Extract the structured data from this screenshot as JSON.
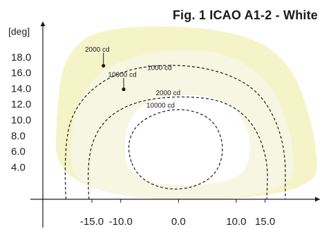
{
  "chart_data": {
    "type": "contour",
    "title": "Fig. 1 ICAO A1-2 - White",
    "xlabel": "",
    "ylabel": "[deg]",
    "xlim": [
      -23.5,
      24.5
    ],
    "ylim": [
      -0.8,
      22.3
    ],
    "x_ticks": [
      -15.0,
      -10.0,
      0.0,
      10.0,
      15.0
    ],
    "x_tick_labels": [
      "-15.0",
      "-10.0",
      "0.0",
      "10.0",
      "15.0"
    ],
    "y_ticks": [
      4.0,
      6.0,
      8.0,
      10.0,
      12.0,
      14.0,
      16.0,
      18.0
    ],
    "y_tick_labels": [
      "4.0",
      "6.0",
      "8.0",
      "10.0",
      "12.0",
      "14.0",
      "16.0",
      "18.0"
    ],
    "filled_regions": [
      {
        "label": "",
        "color": "#f4f4c8",
        "outline": [
          [
            -13,
            22
          ],
          [
            7,
            22
          ],
          [
            19,
            18.5
          ],
          [
            24,
            8
          ],
          [
            24,
            0
          ],
          [
            -21.5,
            0
          ],
          [
            -21,
            14
          ],
          [
            -19,
            19
          ]
        ]
      },
      {
        "label": "",
        "color": "#f6f6e2",
        "outline": [
          [
            -18,
            0
          ],
          [
            -19,
            9
          ],
          [
            -15,
            16
          ],
          [
            -5,
            19
          ],
          [
            8,
            19
          ],
          [
            16,
            15
          ],
          [
            20,
            8
          ],
          [
            20,
            0
          ]
        ]
      },
      {
        "label": "",
        "color": "#ffffff",
        "outline": [
          [
            -9,
            1.8
          ],
          [
            -9.5,
            9.5
          ],
          [
            -5,
            13
          ],
          [
            5,
            13.5
          ],
          [
            11,
            11
          ],
          [
            13,
            6
          ],
          [
            10,
            1.8
          ]
        ]
      }
    ],
    "contours": [
      {
        "label": "1000 cd",
        "points": [
          [
            -19.5,
            0
          ],
          [
            -20,
            7.5
          ],
          [
            -17,
            13
          ],
          [
            -10,
            16.5
          ],
          [
            0,
            17.3
          ],
          [
            9,
            16
          ],
          [
            15,
            13
          ],
          [
            18.5,
            7
          ],
          [
            18.5,
            0
          ]
        ],
        "label_at": [
          -3.3,
          16.7
        ]
      },
      {
        "label": "2000 cd",
        "points": [
          [
            -15.5,
            0
          ],
          [
            -16,
            5
          ],
          [
            -13.5,
            9.8
          ],
          [
            -8,
            12.4
          ],
          [
            0,
            13.2
          ],
          [
            8,
            12.6
          ],
          [
            13,
            9.8
          ],
          [
            15.5,
            5
          ],
          [
            15.3,
            0
          ]
        ],
        "label_at": [
          -1.8,
          13.5
        ]
      },
      {
        "label": "10000 cd",
        "points": [
          [
            -9,
            6.5
          ],
          [
            -7.5,
            9.5
          ],
          [
            -3,
            11.3
          ],
          [
            2,
            11.5
          ],
          [
            6.3,
            10
          ],
          [
            8,
            6.5
          ],
          [
            6.5,
            3
          ],
          [
            2,
            1.3
          ],
          [
            -3,
            1.3
          ],
          [
            -7.3,
            3
          ]
        ],
        "label_at": [
          -3.1,
          11.9
        ]
      }
    ],
    "annotations": [
      {
        "label": "2000 cd",
        "point": [
          -13,
          17
        ],
        "text_at": [
          -16.2,
          19
        ]
      },
      {
        "label": "10000 cd",
        "point": [
          -9.5,
          14
        ],
        "text_at": [
          -12.2,
          15.8
        ]
      }
    ]
  }
}
